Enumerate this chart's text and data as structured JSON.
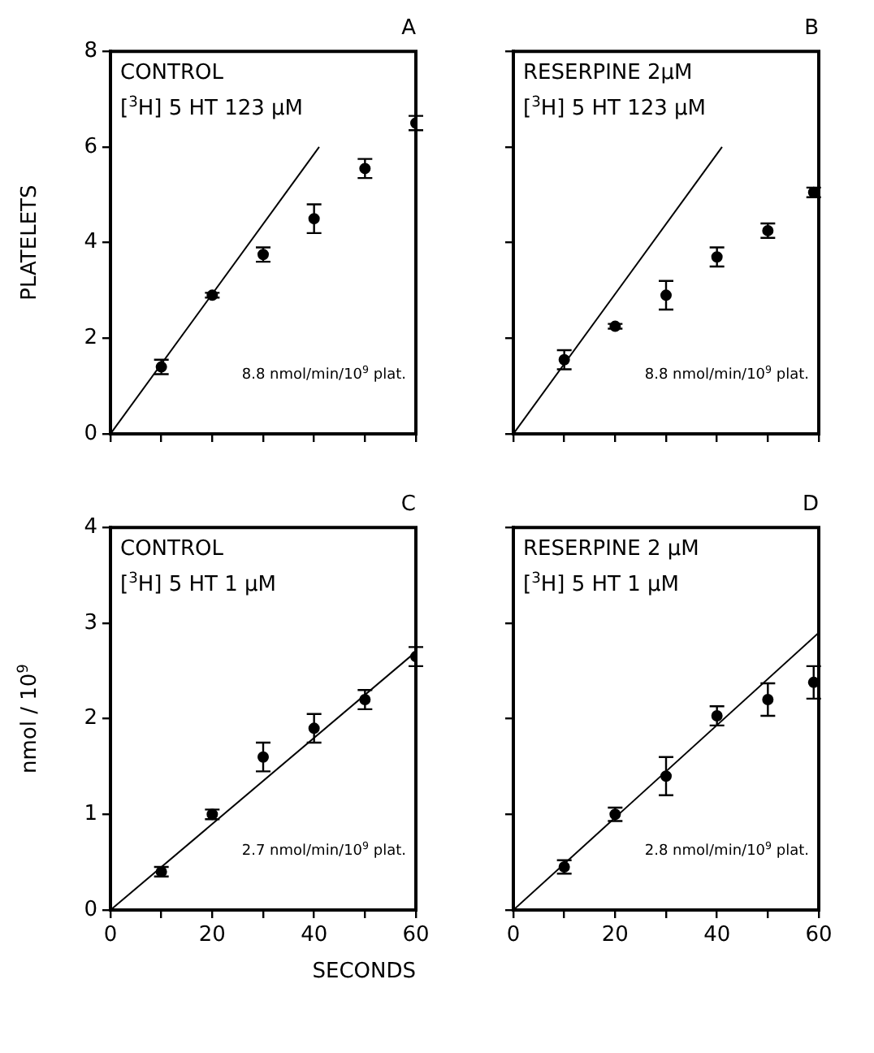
{
  "chart_data": [
    {
      "type": "scatter",
      "title": "A",
      "ylabel": "PLATELETS",
      "annotations": [
        "CONTROL",
        "[$^{3}$H] 5 HT 123 μM",
        "8.8 nmol/min/10$^{9}$ plat."
      ],
      "x": [
        10,
        20,
        30,
        40,
        50,
        60
      ],
      "xlim": [
        0,
        60
      ],
      "ylim": [
        0,
        8
      ],
      "xticks": [
        0,
        {
          "value": 10,
          "label": null
        },
        {
          "value": 20,
          "label": null
        },
        {
          "value": 30,
          "label": null
        },
        {
          "value": 40,
          "label": null
        },
        {
          "value": 50,
          "label": null
        },
        {
          "value": 60,
          "label": null
        }
      ],
      "yticks": [
        0,
        2,
        4,
        6,
        8
      ],
      "tick_labels": "y",
      "grid": false,
      "legend": false,
      "series": [
        {
          "color": "#000000",
          "marker": "circle",
          "values": [
            1.4,
            2.9,
            3.75,
            4.5,
            5.55,
            6.5
          ],
          "errors": [
            0.15,
            0.05,
            0.15,
            0.3,
            0.2,
            0.15
          ]
        },
        {
          "type": "line",
          "color": "#000000",
          "marker": "none",
          "x": [
            0,
            41
          ],
          "values": [
            0,
            6.0
          ]
        }
      ]
    },
    {
      "type": "scatter",
      "title": "B",
      "annotations": [
        "RESERPINE 2μM",
        "[$^{3}$H] 5 HT 123 μM",
        "8.8 nmol/min/10$^{9}$ plat."
      ],
      "x": [
        10,
        20,
        30,
        40,
        50,
        59
      ],
      "xlim": [
        0,
        60
      ],
      "ylim": [
        0,
        8
      ],
      "xticks": [
        {
          "value": 0,
          "label": null
        },
        {
          "value": 10,
          "label": null
        },
        {
          "value": 20,
          "label": null
        },
        {
          "value": 30,
          "label": null
        },
        {
          "value": 40,
          "label": null
        },
        {
          "value": 50,
          "label": null
        },
        {
          "value": 60,
          "label": null
        }
      ],
      "yticks": [
        {
          "value": 0,
          "label": null
        },
        {
          "value": 2,
          "label": null
        },
        {
          "value": 4,
          "label": null
        },
        {
          "value": 6,
          "label": null
        },
        {
          "value": 8,
          "label": null
        }
      ],
      "tick_labels": false,
      "grid": false,
      "legend": false,
      "series": [
        {
          "color": "#000000",
          "marker": "circle",
          "values": [
            1.55,
            2.25,
            2.9,
            3.7,
            4.25,
            5.05
          ],
          "errors": [
            0.2,
            0.05,
            0.3,
            0.2,
            0.15,
            0.1
          ]
        },
        {
          "type": "line",
          "color": "#000000",
          "marker": "none",
          "x": [
            0,
            41
          ],
          "values": [
            0,
            6.0
          ]
        }
      ]
    },
    {
      "type": "scatter",
      "title": "C",
      "ylabel": "nmol / 10$^{9}$",
      "xlabel": "SECONDS",
      "annotations": [
        "CONTROL",
        "[$^{3}$H] 5 HT 1 μM",
        "2.7 nmol/min/10$^{9}$ plat."
      ],
      "x": [
        10,
        20,
        30,
        40,
        50,
        60
      ],
      "xlim": [
        0,
        60
      ],
      "ylim": [
        0,
        4
      ],
      "xticks": [
        0,
        {
          "value": 10,
          "label": null
        },
        20,
        {
          "value": 30,
          "label": null
        },
        40,
        {
          "value": 50,
          "label": null
        },
        60
      ],
      "yticks": [
        0,
        1,
        2,
        3,
        4
      ],
      "grid": false,
      "legend": false,
      "series": [
        {
          "color": "#000000",
          "marker": "circle",
          "values": [
            0.4,
            1.0,
            1.6,
            1.9,
            2.2,
            2.65
          ],
          "errors": [
            0.05,
            0.05,
            0.15,
            0.15,
            0.1,
            0.1
          ]
        },
        {
          "type": "line",
          "color": "#000000",
          "marker": "none",
          "x": [
            0,
            60
          ],
          "values": [
            0,
            2.7
          ]
        }
      ]
    },
    {
      "type": "scatter",
      "title": "D",
      "annotations": [
        "RESERPINE 2 μM",
        "[$^{3}$H] 5 HT 1 μM",
        "2.8 nmol/min/10$^{9}$ plat."
      ],
      "x": [
        10,
        20,
        30,
        40,
        50,
        59
      ],
      "xlim": [
        0,
        60
      ],
      "ylim": [
        0,
        4
      ],
      "xticks": [
        0,
        {
          "value": 10,
          "label": null
        },
        20,
        {
          "value": 30,
          "label": null
        },
        40,
        {
          "value": 50,
          "label": null
        },
        60
      ],
      "yticks": [
        {
          "value": 0,
          "label": null
        },
        {
          "value": 1,
          "label": null
        },
        {
          "value": 2,
          "label": null
        },
        {
          "value": 3,
          "label": null
        },
        {
          "value": 4,
          "label": null
        }
      ],
      "tick_labels": "x",
      "grid": false,
      "legend": false,
      "series": [
        {
          "color": "#000000",
          "marker": "circle",
          "values": [
            0.45,
            1.0,
            1.4,
            2.03,
            2.2,
            2.38
          ],
          "errors": [
            0.07,
            0.07,
            0.2,
            0.1,
            0.17,
            0.17
          ]
        },
        {
          "type": "line",
          "color": "#000000",
          "marker": "none",
          "x": [
            0,
            60
          ],
          "values": [
            0,
            2.9
          ]
        }
      ]
    }
  ]
}
